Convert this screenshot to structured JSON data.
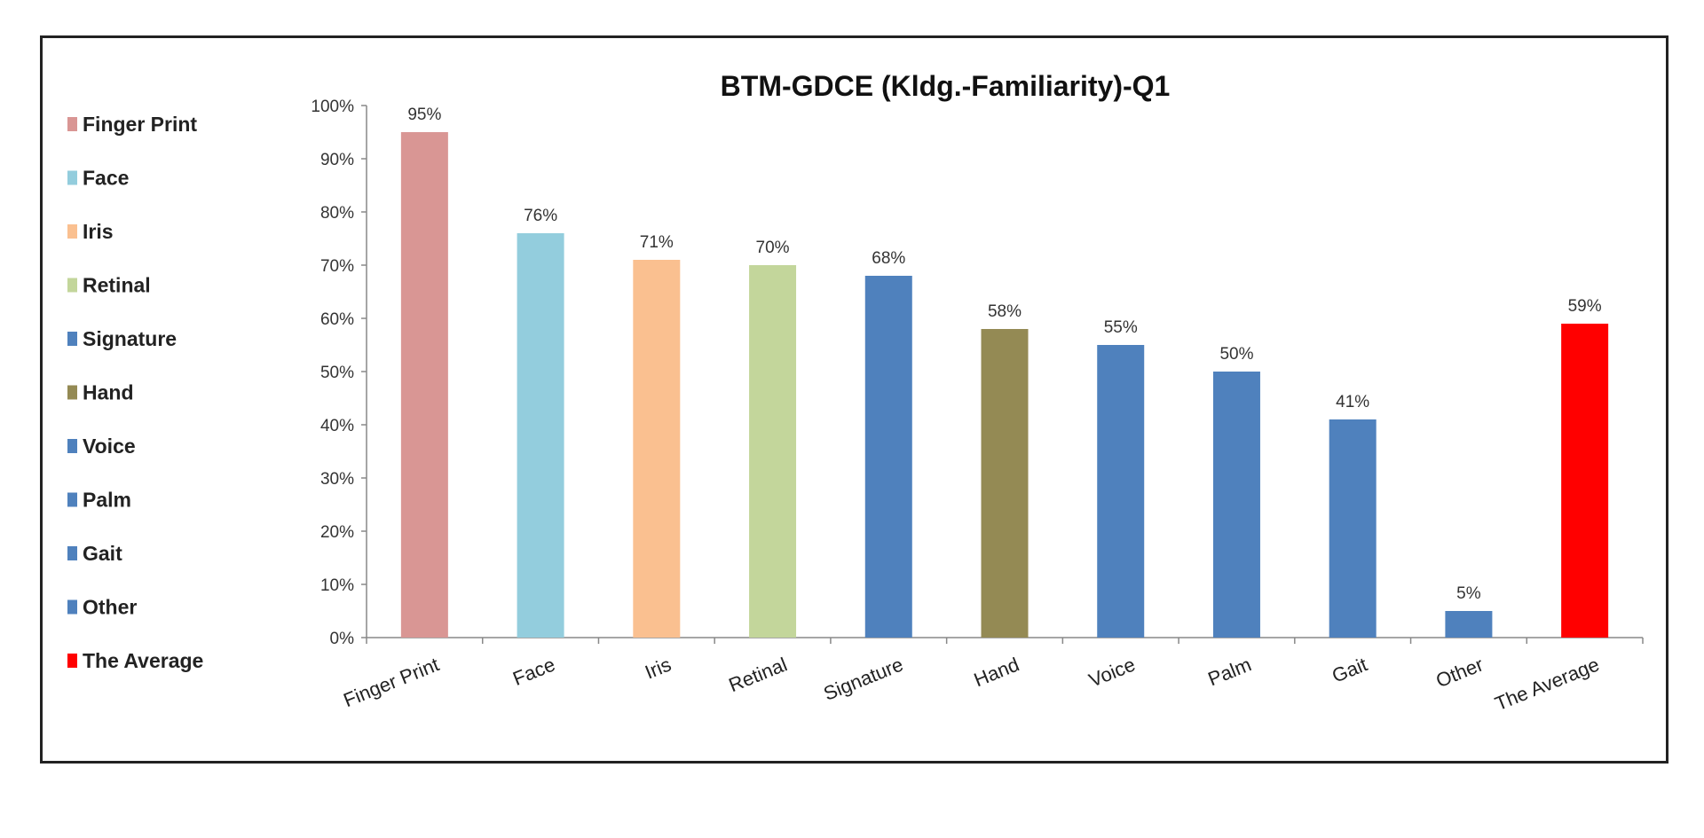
{
  "chart_data": {
    "type": "bar",
    "title": "BTM-GDCE  (Kldg.-Familiarity)-Q1",
    "xlabel": "",
    "ylabel": "",
    "ylim": [
      0,
      100
    ],
    "yticks": [
      "0%",
      "10%",
      "20%",
      "30%",
      "40%",
      "50%",
      "60%",
      "70%",
      "80%",
      "90%",
      "100%"
    ],
    "categories": [
      "Finger Print",
      "Face",
      "Iris",
      "Retinal",
      "Signature",
      "Hand",
      "Voice",
      "Palm",
      "Gait",
      "Other",
      "The Average"
    ],
    "values": [
      95,
      76,
      71,
      70,
      68,
      58,
      55,
      50,
      41,
      5,
      59
    ],
    "data_labels": [
      "95%",
      "76%",
      "71%",
      "70%",
      "68%",
      "58%",
      "55%",
      "50%",
      "41%",
      "5%",
      "59%"
    ],
    "colors": [
      "#D99694",
      "#93CDDD",
      "#FAC090",
      "#C3D69B",
      "#4F81BD",
      "#948A54",
      "#4F81BD",
      "#4F81BD",
      "#4F81BD",
      "#4F81BD",
      "#FF0000"
    ],
    "legend_position": "left",
    "grid": false
  }
}
